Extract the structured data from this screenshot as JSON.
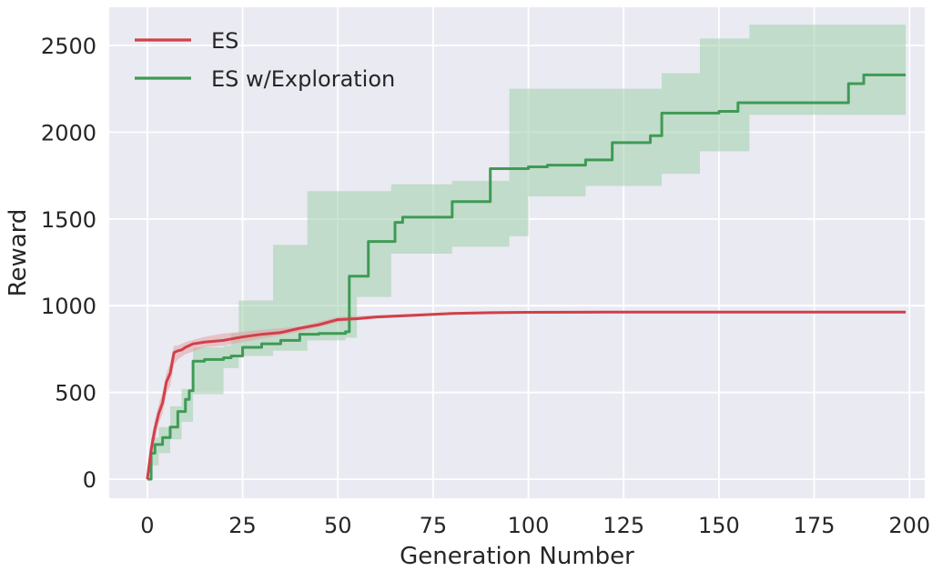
{
  "chart_data": {
    "type": "line",
    "title": "",
    "xlabel": "Generation Number",
    "ylabel": "Reward",
    "xlim": [
      -10,
      204
    ],
    "ylim": [
      -110,
      2720
    ],
    "xticks": [
      0,
      25,
      50,
      75,
      100,
      125,
      150,
      175,
      200
    ],
    "yticks": [
      0,
      500,
      1000,
      1500,
      2000,
      2500
    ],
    "grid": true,
    "legend": {
      "placement": "top-left",
      "entries": [
        "ES",
        "ES w/Exploration"
      ]
    },
    "colors": {
      "background": "#eaeaf2",
      "grid": "#ffffff",
      "ES": "#d0404a",
      "ES w/Exploration": "#3f9a55",
      "ES w/Exploration band": "#9fd0aa",
      "ES band": "#e2a0a4"
    },
    "series": [
      {
        "name": "ES",
        "step": false,
        "points": [
          [
            0,
            0
          ],
          [
            1,
            170
          ],
          [
            2,
            290
          ],
          [
            3,
            380
          ],
          [
            4,
            440
          ],
          [
            5,
            560
          ],
          [
            6,
            610
          ],
          [
            7,
            730
          ],
          [
            8,
            740
          ],
          [
            9,
            745
          ],
          [
            10,
            760
          ],
          [
            12,
            780
          ],
          [
            15,
            790
          ],
          [
            20,
            800
          ],
          [
            25,
            820
          ],
          [
            30,
            835
          ],
          [
            35,
            845
          ],
          [
            40,
            870
          ],
          [
            45,
            890
          ],
          [
            50,
            920
          ],
          [
            55,
            925
          ],
          [
            60,
            935
          ],
          [
            70,
            945
          ],
          [
            80,
            955
          ],
          [
            90,
            960
          ],
          [
            100,
            962
          ],
          [
            120,
            963
          ],
          [
            150,
            963
          ],
          [
            199,
            963
          ]
        ],
        "band_upper": [
          [
            0,
            0
          ],
          [
            1,
            230
          ],
          [
            2,
            340
          ],
          [
            3,
            430
          ],
          [
            4,
            500
          ],
          [
            5,
            610
          ],
          [
            6,
            670
          ],
          [
            7,
            770
          ],
          [
            8,
            770
          ],
          [
            10,
            790
          ],
          [
            15,
            820
          ],
          [
            20,
            840
          ],
          [
            30,
            860
          ],
          [
            40,
            880
          ],
          [
            50,
            935
          ],
          [
            60,
            945
          ],
          [
            80,
            962
          ],
          [
            100,
            970
          ],
          [
            199,
            970
          ]
        ],
        "band_lower": [
          [
            0,
            0
          ],
          [
            1,
            110
          ],
          [
            2,
            230
          ],
          [
            3,
            320
          ],
          [
            4,
            380
          ],
          [
            5,
            490
          ],
          [
            6,
            540
          ],
          [
            7,
            660
          ],
          [
            8,
            690
          ],
          [
            10,
            720
          ],
          [
            15,
            760
          ],
          [
            20,
            770
          ],
          [
            30,
            810
          ],
          [
            40,
            850
          ],
          [
            50,
            905
          ],
          [
            60,
            925
          ],
          [
            80,
            948
          ],
          [
            100,
            955
          ],
          [
            199,
            955
          ]
        ]
      },
      {
        "name": "ES w/Exploration",
        "step": true,
        "points": [
          [
            0,
            0
          ],
          [
            1,
            150
          ],
          [
            2,
            200
          ],
          [
            4,
            240
          ],
          [
            6,
            300
          ],
          [
            8,
            390
          ],
          [
            10,
            460
          ],
          [
            11,
            510
          ],
          [
            12,
            680
          ],
          [
            15,
            690
          ],
          [
            20,
            700
          ],
          [
            22,
            710
          ],
          [
            25,
            760
          ],
          [
            30,
            780
          ],
          [
            35,
            800
          ],
          [
            40,
            835
          ],
          [
            45,
            840
          ],
          [
            52,
            850
          ],
          [
            53,
            1170
          ],
          [
            58,
            1370
          ],
          [
            65,
            1480
          ],
          [
            67,
            1510
          ],
          [
            80,
            1600
          ],
          [
            90,
            1790
          ],
          [
            100,
            1800
          ],
          [
            105,
            1810
          ],
          [
            115,
            1840
          ],
          [
            122,
            1940
          ],
          [
            132,
            1980
          ],
          [
            135,
            2110
          ],
          [
            150,
            2120
          ],
          [
            155,
            2170
          ],
          [
            184,
            2280
          ],
          [
            188,
            2330
          ],
          [
            199,
            2330
          ]
        ],
        "band_upper": [
          [
            0,
            0
          ],
          [
            1,
            240
          ],
          [
            3,
            300
          ],
          [
            6,
            420
          ],
          [
            9,
            520
          ],
          [
            12,
            760
          ],
          [
            20,
            770
          ],
          [
            22,
            840
          ],
          [
            24,
            1030
          ],
          [
            33,
            1350
          ],
          [
            42,
            1660
          ],
          [
            64,
            1700
          ],
          [
            80,
            1720
          ],
          [
            95,
            2250
          ],
          [
            135,
            2340
          ],
          [
            145,
            2540
          ],
          [
            158,
            2620
          ],
          [
            199,
            2620
          ]
        ],
        "band_lower": [
          [
            0,
            0
          ],
          [
            1,
            80
          ],
          [
            3,
            150
          ],
          [
            6,
            230
          ],
          [
            9,
            330
          ],
          [
            12,
            490
          ],
          [
            20,
            640
          ],
          [
            24,
            710
          ],
          [
            33,
            740
          ],
          [
            42,
            800
          ],
          [
            52,
            815
          ],
          [
            55,
            1050
          ],
          [
            64,
            1300
          ],
          [
            80,
            1340
          ],
          [
            95,
            1400
          ],
          [
            100,
            1630
          ],
          [
            115,
            1690
          ],
          [
            135,
            1760
          ],
          [
            145,
            1890
          ],
          [
            158,
            2100
          ],
          [
            199,
            2170
          ]
        ]
      }
    ]
  }
}
